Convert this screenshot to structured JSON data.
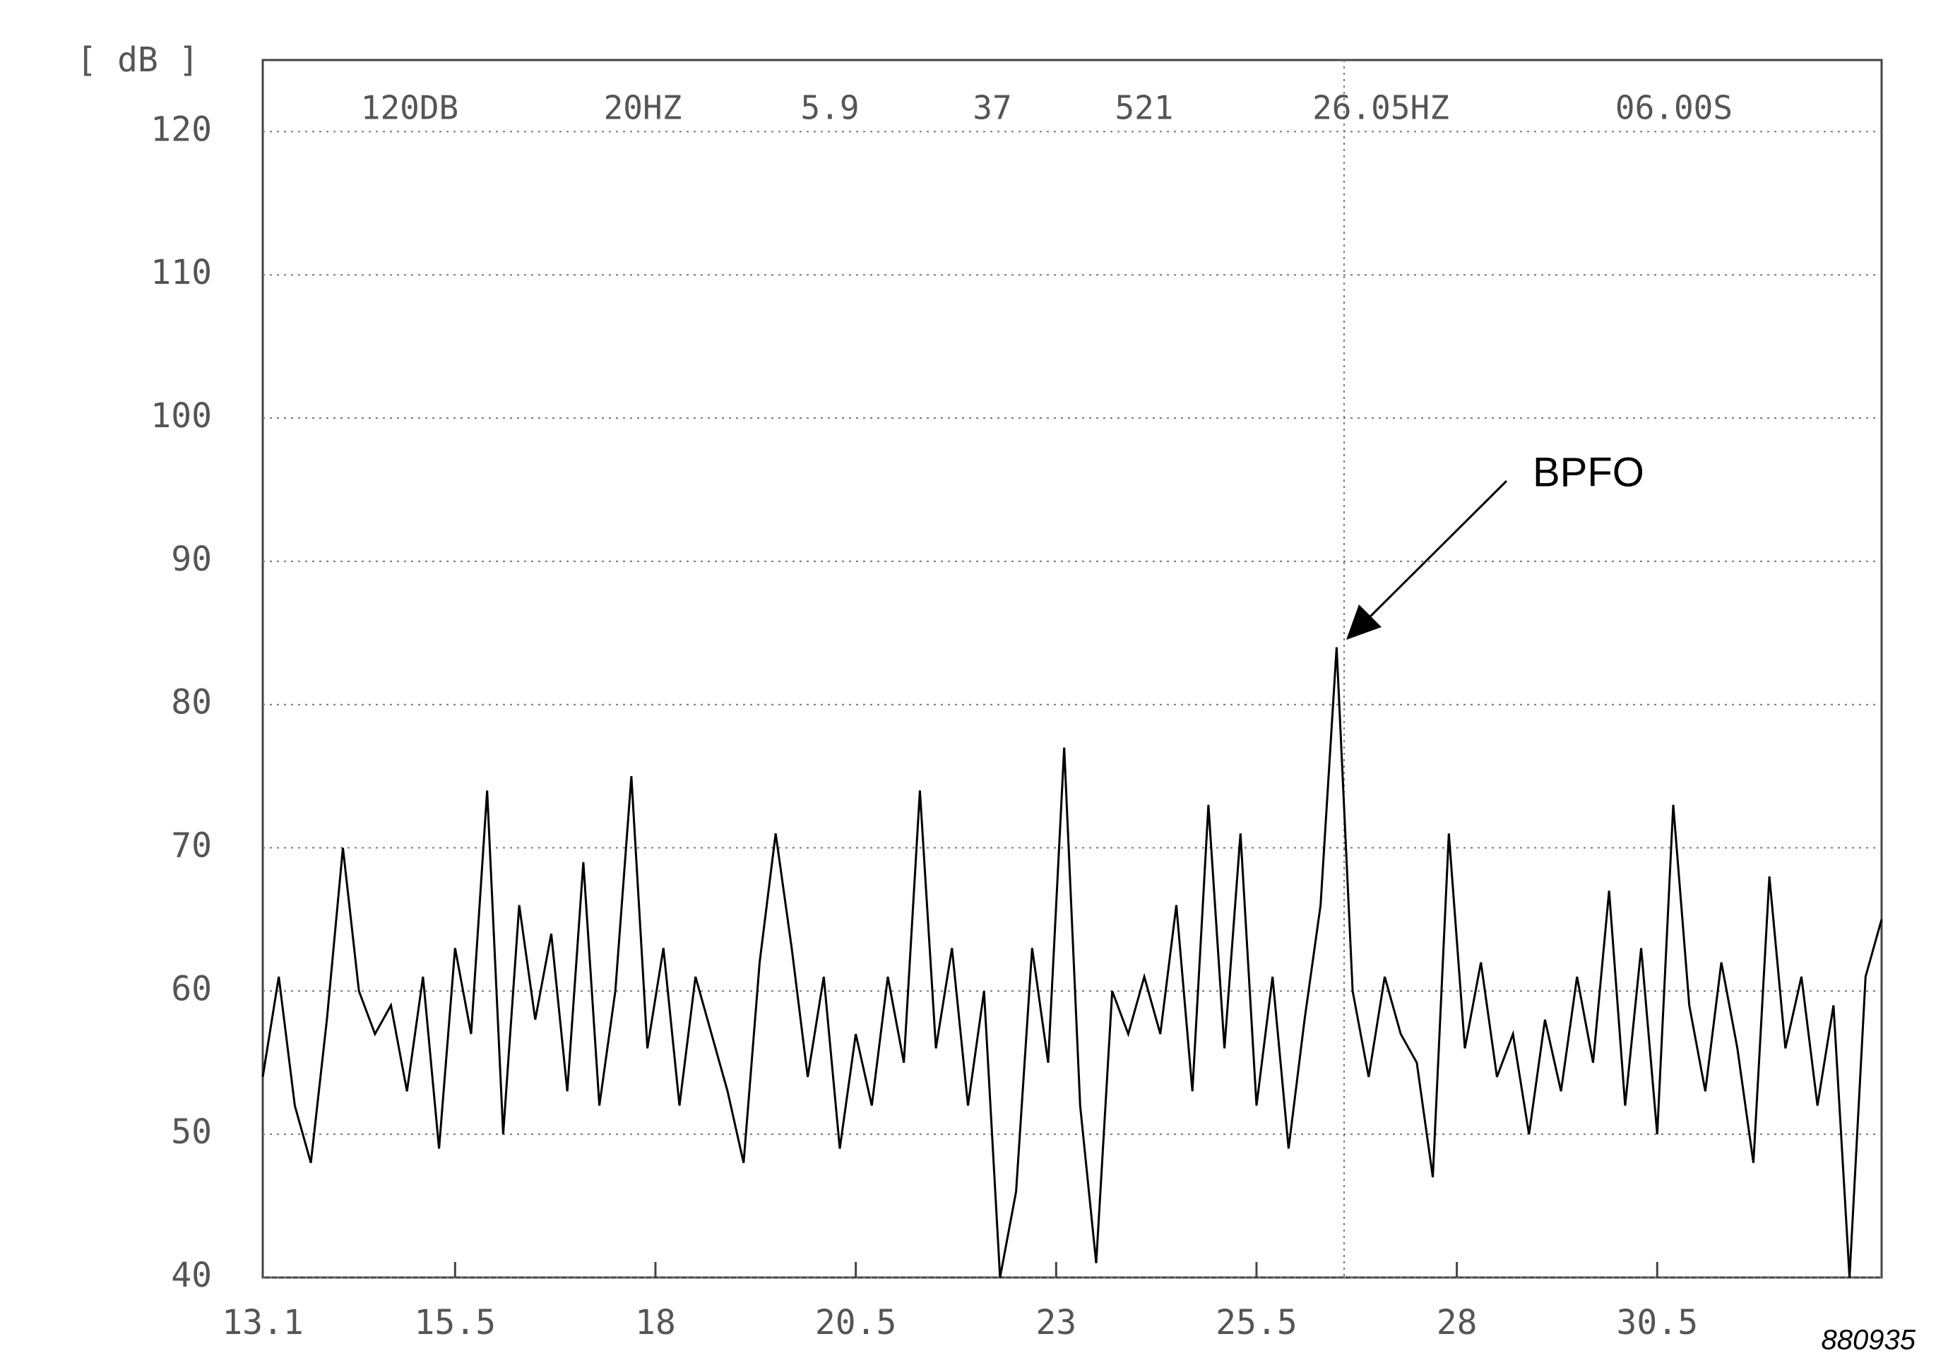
{
  "chart_data": {
    "type": "line",
    "ylabel": "[ dB ]",
    "header": [
      "120DB",
      "20HZ",
      "5.9",
      "37",
      "521",
      "26.05HZ",
      "06.00S"
    ],
    "annotations": [
      "BPFO",
      "880935"
    ],
    "xlim": [
      13.1,
      33.3
    ],
    "xticks": [
      13.1,
      15.5,
      18,
      20.5,
      23,
      25.5,
      28,
      30.5
    ],
    "ylim": [
      40,
      125
    ],
    "yticks": [
      40,
      50,
      60,
      70,
      80,
      90,
      100,
      110,
      120
    ],
    "grid": true,
    "series": [
      {
        "color": "#000000",
        "x": [
          13.1,
          13.3,
          13.5,
          13.7,
          13.9,
          14.1,
          14.3,
          14.5,
          14.7,
          14.9,
          15.1,
          15.3,
          15.5,
          15.7,
          15.9,
          16.1,
          16.3,
          16.5,
          16.7,
          16.9,
          17.1,
          17.3,
          17.5,
          17.7,
          17.9,
          18.1,
          18.3,
          18.5,
          18.7,
          18.9,
          19.1,
          19.3,
          19.5,
          19.7,
          19.9,
          20.1,
          20.3,
          20.5,
          20.7,
          20.9,
          21.1,
          21.3,
          21.5,
          21.7,
          21.9,
          22.1,
          22.3,
          22.5,
          22.7,
          22.9,
          23.1,
          23.3,
          23.5,
          23.7,
          23.9,
          24.1,
          24.3,
          24.5,
          24.7,
          24.9,
          25.1,
          25.3,
          25.5,
          25.7,
          25.9,
          26.1,
          26.3,
          26.5,
          26.7,
          26.9,
          27.1,
          27.3,
          27.5,
          27.7,
          27.9,
          28.1,
          28.3,
          28.5,
          28.7,
          28.9,
          29.1,
          29.3,
          29.5,
          29.7,
          29.9,
          30.1,
          30.3,
          30.5,
          30.7,
          30.9,
          31.1,
          31.3,
          31.5,
          31.7,
          31.9,
          32.1,
          32.3,
          32.5,
          32.7,
          32.9,
          33.1,
          33.3
        ],
        "values": [
          54,
          61,
          52,
          48,
          58,
          70,
          60,
          57,
          59,
          53,
          61,
          49,
          63,
          57,
          74,
          50,
          66,
          58,
          64,
          53,
          69,
          52,
          60,
          75,
          56,
          63,
          52,
          61,
          57,
          53,
          48,
          62,
          71,
          63,
          54,
          61,
          49,
          57,
          52,
          61,
          55,
          74,
          56,
          63,
          52,
          60,
          40,
          46,
          63,
          55,
          77,
          52,
          41,
          60,
          57,
          61,
          57,
          66,
          53,
          73,
          56,
          71,
          52,
          61,
          49,
          58,
          66,
          84,
          60,
          54,
          61,
          57,
          55,
          47,
          71,
          56,
          62,
          54,
          57,
          50,
          58,
          53,
          61,
          55,
          67,
          52,
          63,
          50,
          73,
          59,
          53,
          62,
          56,
          48,
          68,
          56,
          61,
          52,
          59,
          40,
          61,
          65
        ]
      }
    ]
  }
}
